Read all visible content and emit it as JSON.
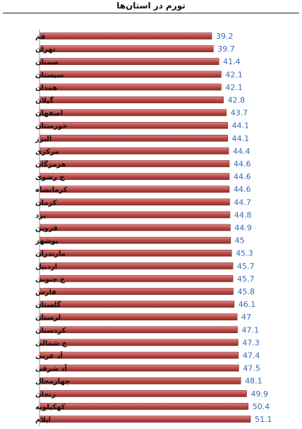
{
  "header": {
    "title": "تورم در استان‌ها"
  },
  "chart_data": {
    "type": "bar",
    "orientation": "horizontal",
    "title": "تورم در استان‌ها",
    "xlabel": "",
    "ylabel": "",
    "xlim": [
      0,
      51.1
    ],
    "grid": false,
    "bar_color": "#c0504d",
    "value_label_color": "#3a6bb5",
    "categories": [
      "قم",
      "تهران",
      "سمنان",
      "سیستان",
      "همدان",
      "گیلان",
      "اصفهان",
      "خوزستان",
      "البرز",
      "مرکزی",
      "هرمزگان",
      "خ رضوی",
      "کرمانشاه",
      "کرمان",
      "یزد",
      "قزوین",
      "بوشهر",
      "مازندران",
      "اردبیل",
      "خ جنوبی",
      "فارس",
      "گلستان",
      "لرستان",
      "کردستان",
      "خ شمالی",
      "آذ غربی",
      "آذ شرقی",
      "چهارمحال",
      "زنجان",
      "کهکیلویه",
      "ایلام"
    ],
    "values": [
      39.2,
      39.7,
      41.4,
      42.1,
      42.1,
      42.8,
      43.7,
      44.1,
      44.1,
      44.4,
      44.6,
      44.6,
      44.6,
      44.7,
      44.8,
      44.9,
      45,
      45.3,
      45.7,
      45.7,
      45.8,
      46.1,
      47,
      47.1,
      47.3,
      47.4,
      47.5,
      48.1,
      49.9,
      50.4,
      51.1
    ],
    "value_labels": [
      "39.2",
      "39.7",
      "41.4",
      "42.1",
      "42.1",
      "42.8",
      "43.7",
      "44.1",
      "44.1",
      "44.4",
      "44.6",
      "44.6",
      "44.6",
      "44.7",
      "44.8",
      "44.9",
      "45",
      "45.3",
      "45.7",
      "45.7",
      "45.8",
      "46.1",
      "47",
      "47.1",
      "47.3",
      "47.4",
      "47.5",
      "48.1",
      "49.9",
      "50.4",
      "51.1"
    ]
  }
}
